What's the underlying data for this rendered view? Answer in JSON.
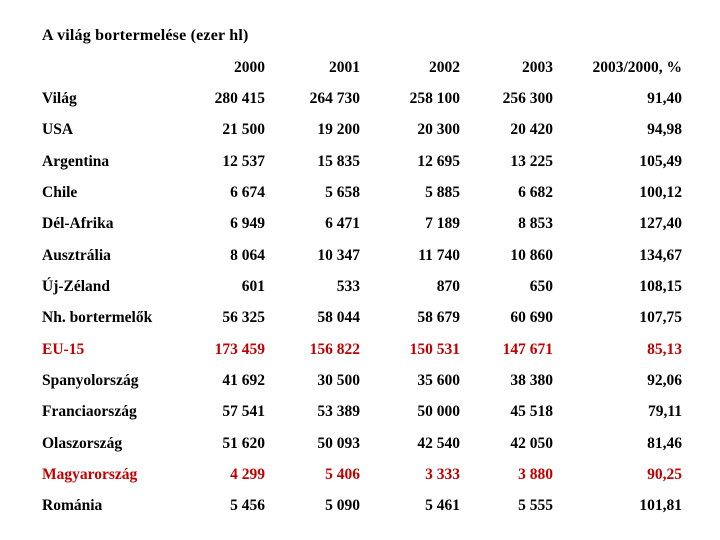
{
  "slide": {
    "title": "A világ bortermelése (ezer hl)",
    "text_color": "#000000",
    "highlight_color": "#c00000",
    "background": "#ffffff"
  },
  "table": {
    "columns": [
      "",
      "2000",
      "2001",
      "2002",
      "2003",
      "2003/2000, %"
    ],
    "rows": [
      {
        "label": "Világ",
        "values": [
          "280 415",
          "264 730",
          "258 100",
          "256 300",
          "91,40"
        ],
        "highlight": false
      },
      {
        "label": "USA",
        "values": [
          "21 500",
          "19 200",
          "20 300",
          "20 420",
          "94,98"
        ],
        "highlight": false
      },
      {
        "label": "Argentina",
        "values": [
          "12 537",
          "15 835",
          "12 695",
          "13 225",
          "105,49"
        ],
        "highlight": false
      },
      {
        "label": "Chile",
        "values": [
          "6 674",
          "5 658",
          "5 885",
          "6 682",
          "100,12"
        ],
        "highlight": false
      },
      {
        "label": "Dél-Afrika",
        "values": [
          "6 949",
          "6 471",
          "7 189",
          "8 853",
          "127,40"
        ],
        "highlight": false
      },
      {
        "label": "Ausztrália",
        "values": [
          "8 064",
          "10 347",
          "11 740",
          "10 860",
          "134,67"
        ],
        "highlight": false
      },
      {
        "label": "Új-Zéland",
        "values": [
          "601",
          "533",
          "870",
          "650",
          "108,15"
        ],
        "highlight": false
      },
      {
        "label": "Nh. bortermelők",
        "values": [
          "56 325",
          "58 044",
          "58 679",
          "60 690",
          "107,75"
        ],
        "highlight": false
      },
      {
        "label": "EU-15",
        "values": [
          "173 459",
          "156 822",
          "150 531",
          "147 671",
          "85,13"
        ],
        "highlight": true
      },
      {
        "label": "Spanyolország",
        "values": [
          "41 692",
          "30 500",
          "35 600",
          "38 380",
          "92,06"
        ],
        "highlight": false
      },
      {
        "label": "Franciaország",
        "values": [
          "57 541",
          "53 389",
          "50 000",
          "45 518",
          "79,11"
        ],
        "highlight": false
      },
      {
        "label": "Olaszország",
        "values": [
          "51 620",
          "50 093",
          "42 540",
          "42 050",
          "81,46"
        ],
        "highlight": false
      },
      {
        "label": "Magyarország",
        "values": [
          "4 299",
          "5 406",
          "3 333",
          "3 880",
          "90,25"
        ],
        "highlight": true
      },
      {
        "label": "Románia",
        "values": [
          "5 456",
          "5 090",
          "5 461",
          "5 555",
          "101,81"
        ],
        "highlight": false
      }
    ]
  },
  "chart_data": {
    "type": "table",
    "title": "A világ bortermelése (ezer hl)",
    "columns": [
      "2000",
      "2001",
      "2002",
      "2003",
      "2003/2000, %"
    ],
    "unit": "ezer hl",
    "rows": [
      {
        "name": "Világ",
        "values": [
          280415,
          264730,
          258100,
          256300,
          91.4
        ]
      },
      {
        "name": "USA",
        "values": [
          21500,
          19200,
          20300,
          20420,
          94.98
        ]
      },
      {
        "name": "Argentina",
        "values": [
          12537,
          15835,
          12695,
          13225,
          105.49
        ]
      },
      {
        "name": "Chile",
        "values": [
          6674,
          5658,
          5885,
          6682,
          100.12
        ]
      },
      {
        "name": "Dél-Afrika",
        "values": [
          6949,
          6471,
          7189,
          8853,
          127.4
        ]
      },
      {
        "name": "Ausztrália",
        "values": [
          8064,
          10347,
          11740,
          10860,
          134.67
        ]
      },
      {
        "name": "Új-Zéland",
        "values": [
          601,
          533,
          870,
          650,
          108.15
        ]
      },
      {
        "name": "Nh. bortermelők",
        "values": [
          56325,
          58044,
          58679,
          60690,
          107.75
        ]
      },
      {
        "name": "EU-15",
        "values": [
          173459,
          156822,
          150531,
          147671,
          85.13
        ]
      },
      {
        "name": "Spanyolország",
        "values": [
          41692,
          30500,
          35600,
          38380,
          92.06
        ]
      },
      {
        "name": "Franciaország",
        "values": [
          57541,
          53389,
          50000,
          45518,
          79.11
        ]
      },
      {
        "name": "Olaszország",
        "values": [
          51620,
          50093,
          42540,
          42050,
          81.46
        ]
      },
      {
        "name": "Magyarország",
        "values": [
          4299,
          5406,
          3333,
          3880,
          90.25
        ]
      },
      {
        "name": "Románia",
        "values": [
          5456,
          5090,
          5461,
          5555,
          101.81
        ]
      }
    ],
    "highlighted_rows": [
      "EU-15",
      "Magyarország"
    ]
  }
}
